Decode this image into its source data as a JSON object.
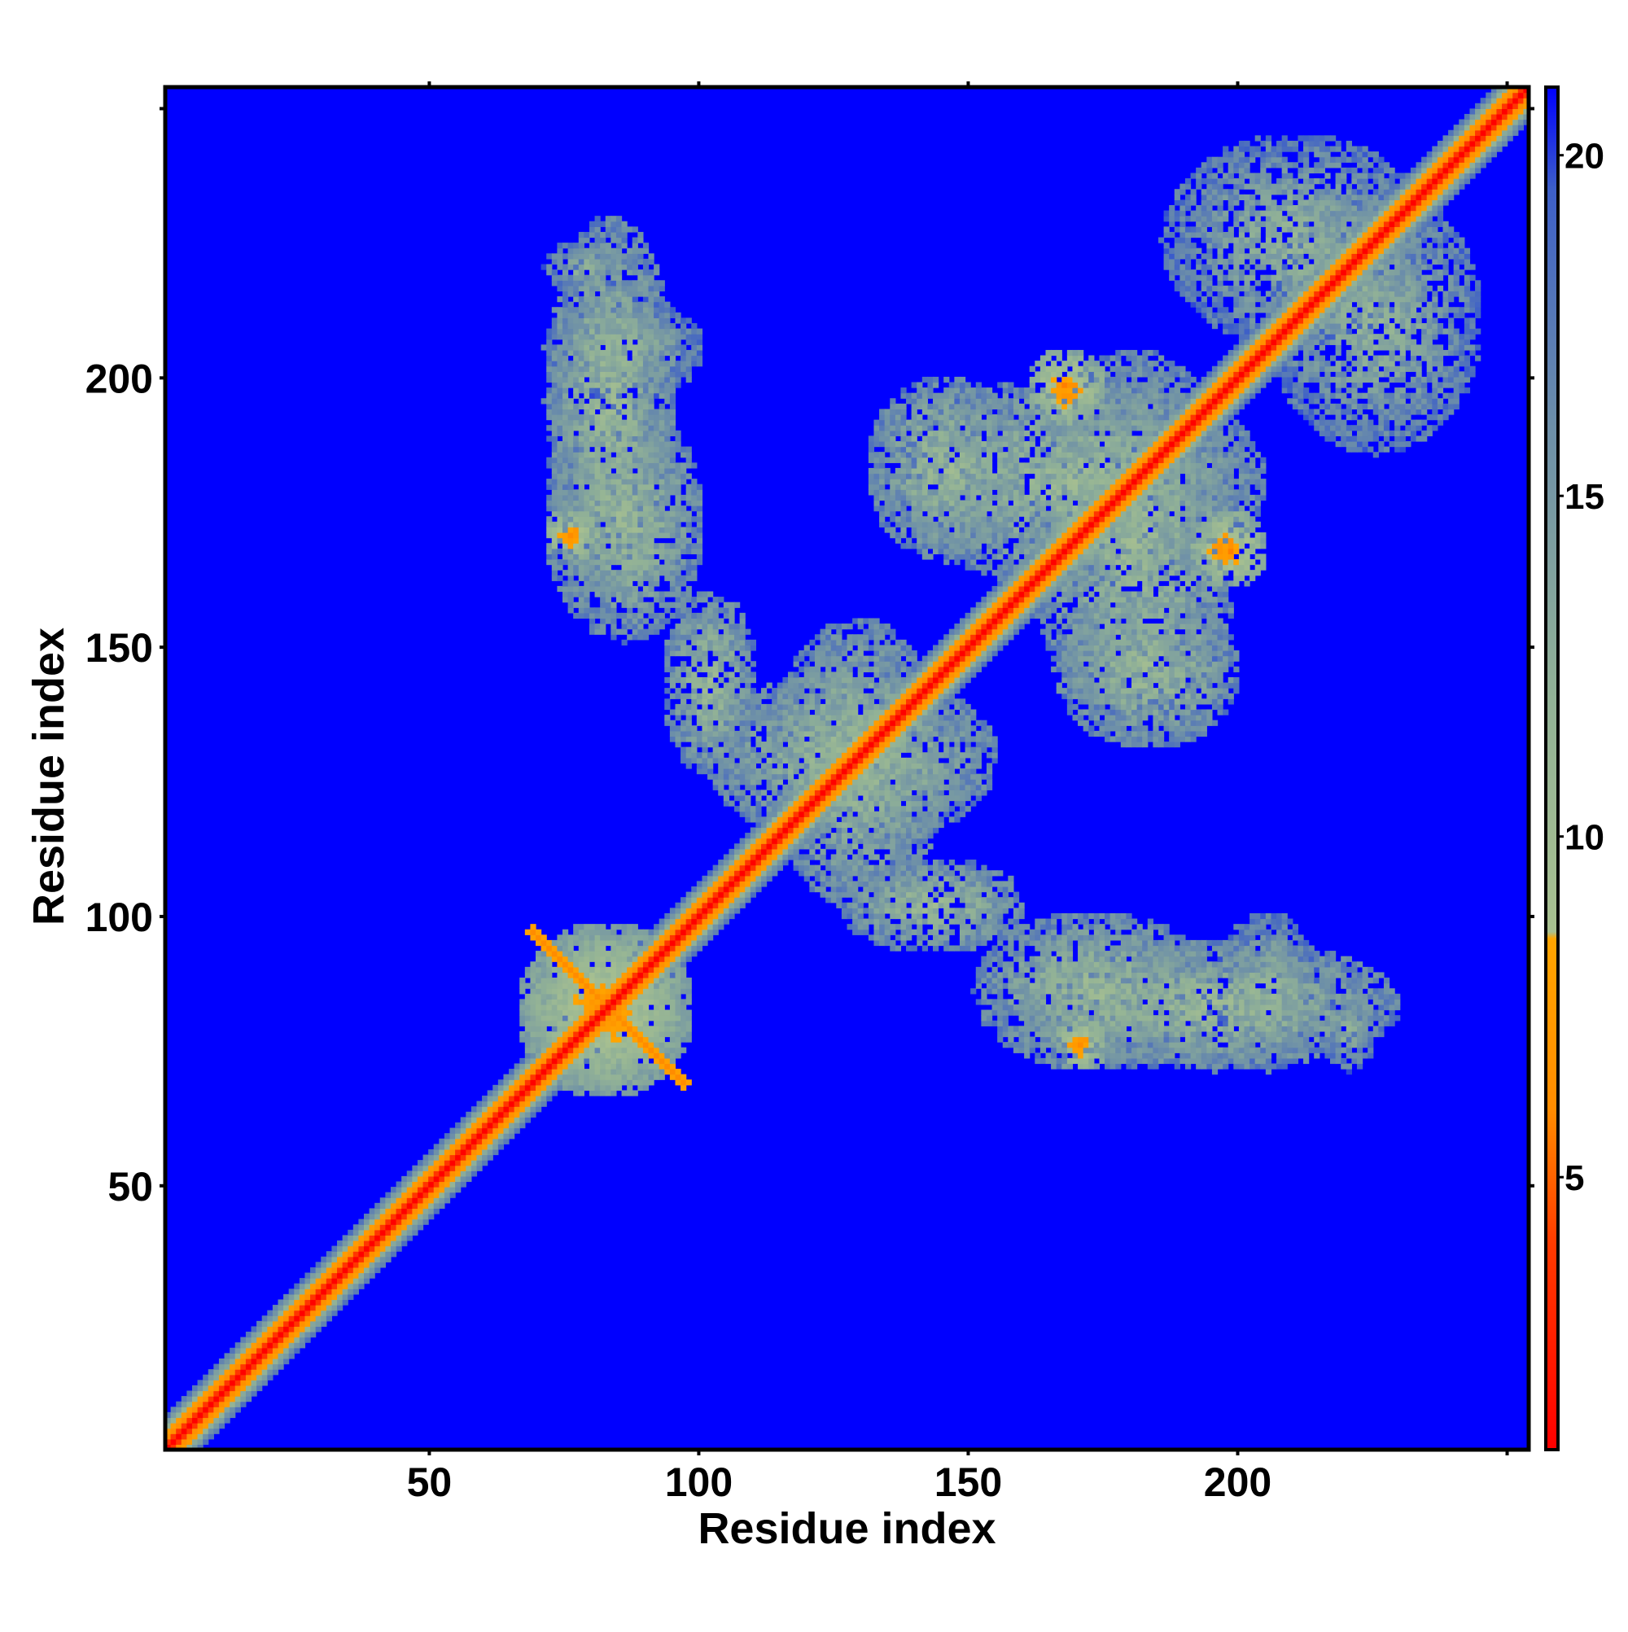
{
  "chart_data": {
    "type": "heatmap",
    "title": "",
    "xlabel": "Residue index",
    "ylabel": "Residue index",
    "xlim": [
      1,
      254
    ],
    "ylim": [
      1,
      254
    ],
    "xticks": [
      50,
      100,
      150,
      200
    ],
    "yticks": [
      50,
      100,
      150,
      200
    ],
    "xtick_labels": [
      "50",
      "100",
      "150",
      "200"
    ],
    "ytick_labels": [
      "50",
      "100",
      "150",
      "200"
    ],
    "n_residues": 254,
    "grid": false,
    "colorbar": {
      "placement": "right",
      "range": [
        1,
        21
      ],
      "ticks": [
        5,
        10,
        15,
        20
      ],
      "tick_labels": [
        "5",
        "10",
        "15",
        "20"
      ],
      "stops": [
        {
          "value": 1,
          "color": "#ff0000"
        },
        {
          "value": 4,
          "color": "#ff3a00"
        },
        {
          "value": 6,
          "color": "#ff8c00"
        },
        {
          "value": 8.5,
          "color": "#ffa500"
        },
        {
          "value": 8.6,
          "color": "#a8c090"
        },
        {
          "value": 12,
          "color": "#92b296"
        },
        {
          "value": 16,
          "color": "#6d8fa8"
        },
        {
          "value": 19.5,
          "color": "#3d5fc8"
        },
        {
          "value": 21,
          "color": "#0000ff"
        }
      ]
    },
    "background_value": 21,
    "background_color": "#0000ff",
    "diagonal_value": 3.8,
    "contact_regions": [
      {
        "x": [
          0,
          254
        ],
        "y": [
          0,
          254
        ],
        "kind": "diagonal band",
        "halfwidth": 3
      },
      {
        "x": [
          65,
          98
        ],
        "y": [
          65,
          98
        ],
        "kind": "anti-diagonal contacts",
        "value": 7
      },
      {
        "x": [
          70,
          95
        ],
        "y": [
          160,
          230
        ],
        "kind": "patch",
        "value": 11
      },
      {
        "x": [
          92,
          110
        ],
        "y": [
          125,
          160
        ],
        "kind": "patch",
        "value": 11
      },
      {
        "x": [
          112,
          145
        ],
        "y": [
          100,
          155
        ],
        "kind": "patch",
        "value": 11
      },
      {
        "x": [
          130,
          160
        ],
        "y": [
          165,
          200
        ],
        "kind": "patch",
        "value": 11
      },
      {
        "x": [
          150,
          195
        ],
        "y": [
          70,
          100
        ],
        "kind": "patch",
        "value": 11
      },
      {
        "x": [
          160,
          200
        ],
        "y": [
          135,
          205
        ],
        "kind": "patch",
        "value": 11
      },
      {
        "x": [
          185,
          235
        ],
        "y": [
          205,
          245
        ],
        "kind": "patch",
        "value": 12
      },
      {
        "x": [
          195,
          215
        ],
        "y": [
          70,
          100
        ],
        "kind": "patch",
        "value": 12
      },
      {
        "x": [
          165,
          175
        ],
        "y": [
          70,
          80
        ],
        "kind": "contact streak",
        "value": 6
      },
      {
        "x": [
          190,
          205
        ],
        "y": [
          160,
          175
        ],
        "kind": "contact streak",
        "value": 6
      },
      {
        "x": [
          215,
          225
        ],
        "y": [
          70,
          85
        ],
        "kind": "patch",
        "value": 12
      }
    ]
  }
}
